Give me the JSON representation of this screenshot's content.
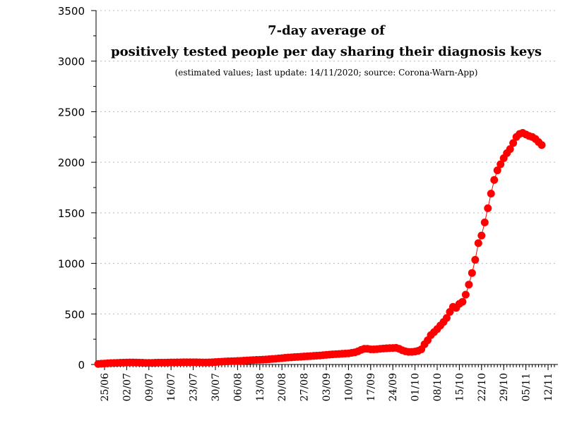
{
  "chart_data": {
    "type": "scatter",
    "title_line1": "7-day average of",
    "title_line2": "positively tested people per day sharing their diagnosis keys",
    "subtitle": "(estimated values; last update: 14/11/2020; source: Corona-Warn-App)",
    "xlabel": "",
    "ylabel": "",
    "ylim": [
      0,
      3500
    ],
    "yticks": [
      "0",
      "500",
      "1000",
      "1500",
      "2000",
      "2500",
      "3000",
      "3500"
    ],
    "grid": "horizontal dotted",
    "marker_color": "#ff0000",
    "x_start": "2020-06-23",
    "x_end": "2020-11-14",
    "xticks": [
      "25/06",
      "02/07",
      "09/07",
      "16/07",
      "23/07",
      "30/07",
      "06/08",
      "13/08",
      "20/08",
      "27/08",
      "03/09",
      "10/09",
      "17/09",
      "24/09",
      "01/10",
      "08/10",
      "15/10",
      "22/10",
      "29/10",
      "05/11",
      "12/11"
    ],
    "series": [
      {
        "values": [
          5,
          8,
          10,
          12,
          14,
          15,
          16,
          17,
          18,
          19,
          20,
          20,
          19,
          18,
          17,
          16,
          16,
          16,
          17,
          18,
          18,
          18,
          19,
          20,
          20,
          21,
          21,
          22,
          22,
          22,
          22,
          22,
          21,
          20,
          20,
          21,
          22,
          24,
          26,
          28,
          30,
          31,
          32,
          33,
          35,
          36,
          38,
          40,
          42,
          44,
          45,
          46,
          48,
          50,
          52,
          55,
          57,
          60,
          63,
          66,
          69,
          71,
          73,
          75,
          77,
          79,
          81,
          83,
          85,
          87,
          89,
          92,
          95,
          98,
          100,
          102,
          104,
          106,
          108,
          110,
          115,
          120,
          130,
          145,
          155,
          155,
          150,
          150,
          152,
          155,
          158,
          160,
          162,
          163,
          165,
          155,
          140,
          130,
          125,
          125,
          128,
          135,
          150,
          200,
          240,
          290,
          320,
          350,
          385,
          420,
          460,
          520,
          570,
          560,
          600,
          620,
          690,
          790,
          905,
          1035,
          1200,
          1275,
          1405,
          1545,
          1690,
          1825,
          1920,
          1980,
          2040,
          2090,
          2130,
          2190,
          2250,
          2280,
          2290,
          2275,
          2260,
          2250,
          2230,
          2200,
          2170
        ]
      }
    ]
  }
}
